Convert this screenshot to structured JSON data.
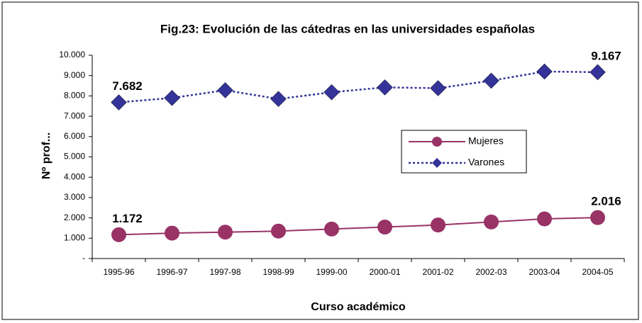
{
  "chart_data": {
    "type": "line",
    "title": "Fig.23: Evolución de las cátedras en las universidades españolas",
    "xlabel": "Curso académico",
    "ylabel": "Nº prof...",
    "categories": [
      "1995-96",
      "1996-97",
      "1997-98",
      "1998-99",
      "1999-00",
      "2000-01",
      "2001-02",
      "2002-03",
      "2003-04",
      "2004-05"
    ],
    "series": [
      {
        "name": "Mujeres",
        "color": "#993366",
        "marker": "circle",
        "linestyle": "solid",
        "values": [
          1172,
          1250,
          1300,
          1350,
          1450,
          1550,
          1650,
          1800,
          1950,
          2016
        ],
        "value_labels": [
          "1.172",
          null,
          null,
          null,
          null,
          null,
          null,
          null,
          null,
          "2.016"
        ]
      },
      {
        "name": "Varones",
        "color": "#333399",
        "marker": "diamond",
        "linestyle": "dotted",
        "values": [
          7682,
          7900,
          8280,
          7850,
          8180,
          8420,
          8380,
          8750,
          9200,
          9167
        ],
        "value_labels": [
          "7.682",
          null,
          null,
          null,
          null,
          null,
          null,
          null,
          null,
          "9.167"
        ]
      }
    ],
    "ylim": [
      0,
      10000
    ],
    "yticks": [
      {
        "value": 0,
        "label": "-"
      },
      {
        "value": 1000,
        "label": "1.000"
      },
      {
        "value": 2000,
        "label": "2.000"
      },
      {
        "value": 3000,
        "label": "3.000"
      },
      {
        "value": 4000,
        "label": "4.000"
      },
      {
        "value": 5000,
        "label": "5.000"
      },
      {
        "value": 6000,
        "label": "6.000"
      },
      {
        "value": 7000,
        "label": "7.000"
      },
      {
        "value": 8000,
        "label": "8.000"
      },
      {
        "value": 9000,
        "label": "9.000"
      },
      {
        "value": 10000,
        "label": "10.000"
      }
    ],
    "legend": "right"
  }
}
